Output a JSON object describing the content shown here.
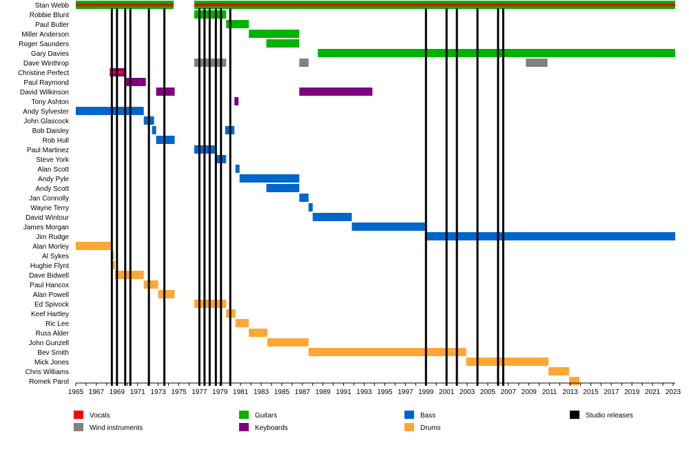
{
  "chart_data": {
    "type": "timeline",
    "title": "",
    "xlim": [
      1965,
      2023.2
    ],
    "x_ticks": [
      "1965",
      "1967",
      "1969",
      "1971",
      "1973",
      "1975",
      "1977",
      "1979",
      "1981",
      "1983",
      "1985",
      "1987",
      "1989",
      "1991",
      "1993",
      "1995",
      "1997",
      "1999",
      "2001",
      "2003",
      "2005",
      "2007",
      "2009",
      "2011",
      "2013",
      "2015",
      "2017",
      "2019",
      "2021",
      "2023"
    ],
    "roles": {
      "vocals": {
        "label": "Vocals",
        "color": "#ff0000"
      },
      "guitars": {
        "label": "Guitars",
        "color": "#00b300"
      },
      "bass": {
        "label": "Bass",
        "color": "#0066cc"
      },
      "studio": {
        "label": "Studio releases",
        "color": "#000000"
      },
      "wind": {
        "label": "Wind instruments",
        "color": "#808080"
      },
      "keyboards": {
        "label": "Keyboards",
        "color": "#800080"
      },
      "drums": {
        "label": "Drums",
        "color": "#ffa733"
      }
    },
    "members": [
      {
        "name": "Stan Webb",
        "bars": [
          [
            1965,
            1974.5,
            "guitars"
          ],
          [
            1965,
            1974.5,
            "vocals",
            0.35
          ],
          [
            1976.5,
            2023.2,
            "guitars"
          ],
          [
            1976.5,
            2023.2,
            "vocals",
            0.35
          ]
        ]
      },
      {
        "name": "Robbie Blunt",
        "bars": [
          [
            1976.5,
            1979.6,
            "guitars"
          ]
        ]
      },
      {
        "name": "Paul Butler",
        "bars": [
          [
            1979.6,
            1981.8,
            "guitars"
          ]
        ]
      },
      {
        "name": "Miller Anderson",
        "bars": [
          [
            1981.8,
            1986.7,
            "guitars"
          ]
        ]
      },
      {
        "name": "Roger Saunders",
        "bars": [
          [
            1983.5,
            1986.7,
            "guitars"
          ]
        ]
      },
      {
        "name": "Gary Davies",
        "bars": [
          [
            1988.5,
            2023.2,
            "guitars"
          ]
        ]
      },
      {
        "name": "Dave Winthrop",
        "bars": [
          [
            1976.5,
            1979.6,
            "wind"
          ],
          [
            1986.7,
            1987.6,
            "wind"
          ],
          [
            2008.7,
            2010.8,
            "wind"
          ]
        ]
      },
      {
        "name": "Christine Perfect",
        "bars": [
          [
            1968.3,
            1969.9,
            "keyboards"
          ],
          [
            1968.3,
            1969.9,
            "vocals",
            0.35
          ]
        ]
      },
      {
        "name": "Paul Raymond",
        "bars": [
          [
            1969.9,
            1971.8,
            "keyboards"
          ]
        ]
      },
      {
        "name": "David Wilkinson",
        "bars": [
          [
            1972.8,
            1974.6,
            "keyboards"
          ],
          [
            1986.7,
            1993.8,
            "keyboards"
          ]
        ]
      },
      {
        "name": "Tony Ashton",
        "bars": [
          [
            1980.4,
            1980.8,
            "keyboards"
          ]
        ]
      },
      {
        "name": "Andy Sylvester",
        "bars": [
          [
            1965,
            1971.6,
            "bass"
          ]
        ]
      },
      {
        "name": "John Glascock",
        "bars": [
          [
            1971.6,
            1972.6,
            "bass"
          ]
        ]
      },
      {
        "name": "Bob Daisley",
        "bars": [
          [
            1972.4,
            1972.8,
            "bass"
          ],
          [
            1979.5,
            1980.4,
            "bass"
          ]
        ]
      },
      {
        "name": "Rob Hull",
        "bars": [
          [
            1972.8,
            1974.6,
            "bass"
          ]
        ]
      },
      {
        "name": "Paul Martinez",
        "bars": [
          [
            1976.5,
            1978.5,
            "bass"
          ]
        ]
      },
      {
        "name": "Steve York",
        "bars": [
          [
            1978.5,
            1979.6,
            "bass"
          ]
        ]
      },
      {
        "name": "Alan Scott",
        "bars": [
          [
            1980.5,
            1980.9,
            "bass"
          ]
        ]
      },
      {
        "name": "Andy Pyle",
        "bars": [
          [
            1980.9,
            1986.7,
            "bass"
          ]
        ]
      },
      {
        "name": "Andy Scott",
        "bars": [
          [
            1983.5,
            1986.7,
            "bass"
          ]
        ]
      },
      {
        "name": "Jan Connolly",
        "bars": [
          [
            1986.7,
            1987.6,
            "bass"
          ]
        ]
      },
      {
        "name": "Wayne Terry",
        "bars": [
          [
            1987.6,
            1988.0,
            "bass"
          ]
        ]
      },
      {
        "name": "David Wintour",
        "bars": [
          [
            1988.0,
            1991.8,
            "bass"
          ]
        ]
      },
      {
        "name": "James Morgan",
        "bars": [
          [
            1991.8,
            1998.9,
            "bass"
          ]
        ]
      },
      {
        "name": "Jim Rudge",
        "bars": [
          [
            1998.9,
            2023.2,
            "bass"
          ]
        ]
      },
      {
        "name": "Alan Morley",
        "bars": [
          [
            1965,
            1968.4,
            "drums"
          ]
        ]
      },
      {
        "name": "Al Sykes",
        "bars": [
          [
            1968.4,
            1968.7,
            "drums"
          ]
        ]
      },
      {
        "name": "Hughie Flynt",
        "bars": [
          [
            1968.6,
            1968.8,
            "drums"
          ]
        ]
      },
      {
        "name": "Dave Bidwell",
        "bars": [
          [
            1968.8,
            1971.6,
            "drums"
          ]
        ]
      },
      {
        "name": "Paul Hancox",
        "bars": [
          [
            1971.6,
            1973.0,
            "drums"
          ]
        ]
      },
      {
        "name": "Alan Powell",
        "bars": [
          [
            1973.0,
            1974.6,
            "drums"
          ]
        ]
      },
      {
        "name": "Ed Spivock",
        "bars": [
          [
            1976.5,
            1979.6,
            "drums"
          ]
        ]
      },
      {
        "name": "Keef Hartley",
        "bars": [
          [
            1979.6,
            1980.5,
            "drums"
          ]
        ]
      },
      {
        "name": "Ric Lee",
        "bars": [
          [
            1980.5,
            1981.8,
            "drums"
          ]
        ]
      },
      {
        "name": "Russ Alder",
        "bars": [
          [
            1981.8,
            1983.6,
            "drums"
          ]
        ]
      },
      {
        "name": "John Gunzell",
        "bars": [
          [
            1983.6,
            1987.6,
            "drums"
          ]
        ]
      },
      {
        "name": "Bev Smith",
        "bars": [
          [
            1987.6,
            2002.9,
            "drums"
          ]
        ]
      },
      {
        "name": "Mick Jones",
        "bars": [
          [
            2002.9,
            2010.9,
            "drums"
          ]
        ]
      },
      {
        "name": "Chris Williams",
        "bars": [
          [
            2010.9,
            2012.9,
            "drums"
          ]
        ]
      },
      {
        "name": "Romek Parol",
        "bars": [
          [
            2012.9,
            2013.9,
            "drums"
          ]
        ]
      }
    ],
    "studio_releases": [
      1968.5,
      1969.0,
      1969.8,
      1970.3,
      1972.1,
      1973.6,
      1977.0,
      1977.5,
      1978.0,
      1978.6,
      1979.1,
      1980.0,
      1999.0,
      2001.0,
      2002.0,
      2004.0,
      2006.0,
      2006.5
    ],
    "legend": [
      {
        "role": "vocals",
        "label": "Vocals"
      },
      {
        "role": "guitars",
        "label": "Guitars"
      },
      {
        "role": "bass",
        "label": "Bass"
      },
      {
        "role": "studio",
        "label": "Studio releases"
      },
      {
        "role": "wind",
        "label": "Wind instruments"
      },
      {
        "role": "keyboards",
        "label": "Keyboards"
      },
      {
        "role": "drums",
        "label": "Drums"
      }
    ]
  }
}
